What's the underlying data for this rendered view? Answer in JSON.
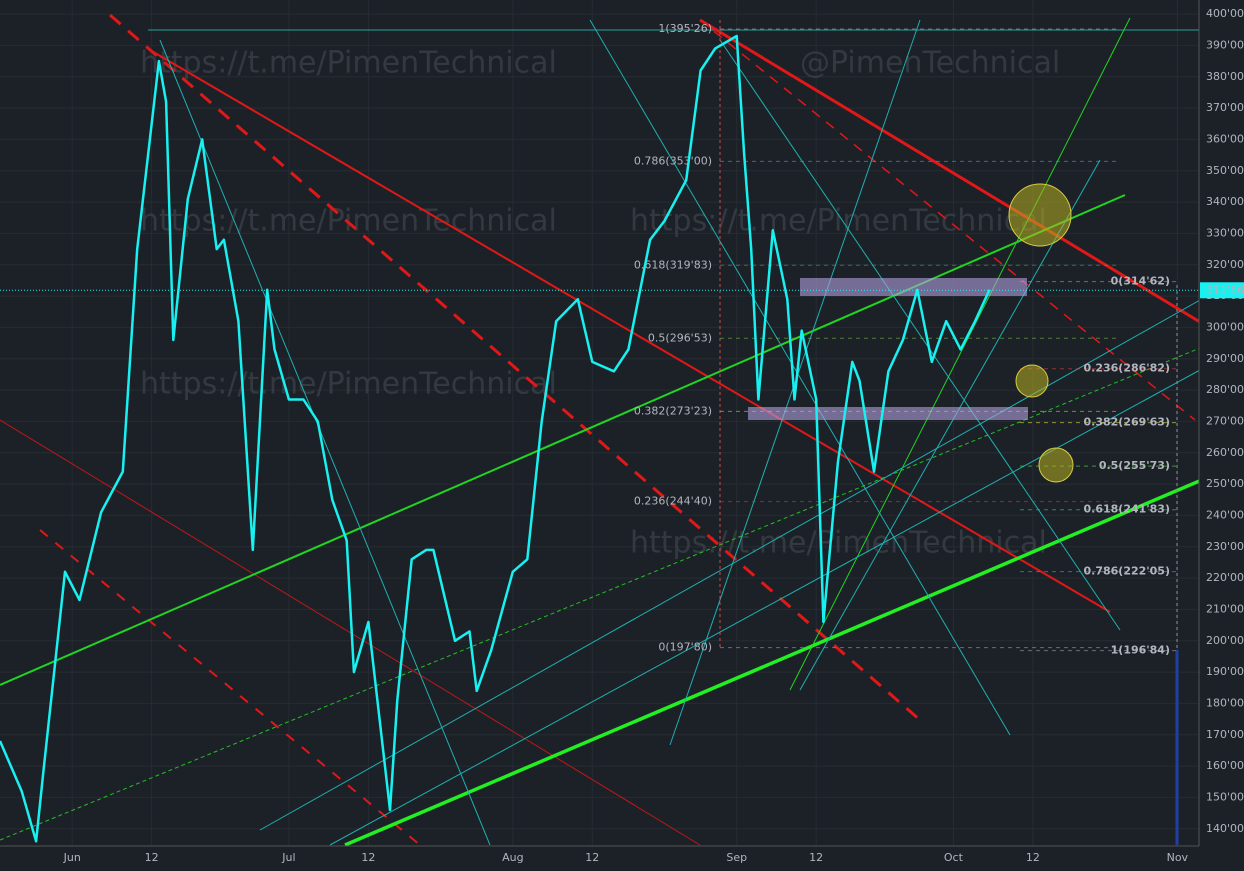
{
  "chart_data": {
    "type": "line",
    "annotations": [
      "https://t.me/PimenTechnical",
      "@PimenTechnical",
      "https://t.me/PimenTechnical",
      "https://t.me/PimenTechnical",
      "https://t.me/PimenTechnical",
      "https://t.me/PimenTechnical"
    ],
    "x": [
      "05-22",
      "05-25",
      "05-27",
      "05-28",
      "05-31",
      "06-02",
      "06-05",
      "06-08",
      "06-10",
      "06-13",
      "06-14",
      "06-15",
      "06-17",
      "06-19",
      "06-21",
      "06-22",
      "06-24",
      "06-26",
      "06-28",
      "06-29",
      "07-01",
      "07-03",
      "07-05",
      "07-07",
      "07-09",
      "07-10",
      "07-12",
      "07-15",
      "07-16",
      "07-18",
      "07-20",
      "07-21",
      "07-24",
      "07-26",
      "07-27",
      "07-29",
      "08-01",
      "08-03",
      "08-05",
      "08-07",
      "08-10",
      "08-12",
      "08-15",
      "08-17",
      "08-20",
      "08-22",
      "08-25",
      "08-27",
      "08-29",
      "09-01",
      "09-02",
      "09-03",
      "09-04",
      "09-06",
      "09-08",
      "09-09",
      "09-10",
      "09-12",
      "09-13",
      "09-15",
      "09-17",
      "09-18",
      "09-20",
      "09-22",
      "09-24",
      "09-26",
      "09-28",
      "09-30",
      "10-02",
      "10-04",
      "10-06"
    ],
    "series": [
      {
        "color": "#19f0f0",
        "values": [
          168,
          152,
          136,
          158,
          222,
          213,
          241,
          254,
          325,
          385,
          372,
          296,
          341,
          360,
          325,
          328,
          302,
          229,
          312,
          293,
          277,
          277,
          270,
          245,
          232,
          190,
          206,
          146,
          181,
          226,
          229,
          229,
          200,
          203,
          184,
          197,
          222,
          226,
          270,
          302,
          309,
          289,
          286,
          293,
          328,
          334,
          347,
          382,
          389,
          393,
          356,
          325,
          277,
          331,
          309,
          277,
          299,
          277,
          206,
          257,
          289,
          283,
          254,
          286,
          296,
          312,
          289,
          302,
          293,
          302,
          312
        ]
      }
    ],
    "xlim": [
      "05-22",
      "11-04"
    ],
    "xticks": [
      {
        "value": "06-01",
        "label": "Jun"
      },
      {
        "value": "06-12",
        "label": "12"
      },
      {
        "value": "07-01",
        "label": "Jul"
      },
      {
        "value": "07-12",
        "label": "12"
      },
      {
        "value": "08-01",
        "label": "Aug"
      },
      {
        "value": "08-12",
        "label": "12"
      },
      {
        "value": "09-01",
        "label": "Sep"
      },
      {
        "value": "09-12",
        "label": "12"
      },
      {
        "value": "10-01",
        "label": "Oct"
      },
      {
        "value": "10-12",
        "label": "12"
      },
      {
        "value": "11-01",
        "label": "Nov"
      }
    ],
    "ylim": [
      134.5,
      404.5
    ],
    "yticks": [
      {
        "value": 140,
        "label": "140'00"
      },
      {
        "value": 150,
        "label": "150'00"
      },
      {
        "value": 160,
        "label": "160'00"
      },
      {
        "value": 170,
        "label": "170'00"
      },
      {
        "value": 180,
        "label": "180'00"
      },
      {
        "value": 190,
        "label": "190'00"
      },
      {
        "value": 200,
        "label": "200'00"
      },
      {
        "value": 210,
        "label": "210'00"
      },
      {
        "value": 220,
        "label": "220'00"
      },
      {
        "value": 230,
        "label": "230'00"
      },
      {
        "value": 240,
        "label": "240'00"
      },
      {
        "value": 250,
        "label": "250'00"
      },
      {
        "value": 260,
        "label": "260'00"
      },
      {
        "value": 270,
        "label": "270'00"
      },
      {
        "value": 280,
        "label": "280'00"
      },
      {
        "value": 290,
        "label": "290'00"
      },
      {
        "value": 300,
        "label": "300'00"
      },
      {
        "value": 310,
        "label": "310'00"
      },
      {
        "value": 320,
        "label": "320'00"
      },
      {
        "value": 330,
        "label": "330'00"
      },
      {
        "value": 340,
        "label": "340'00"
      },
      {
        "value": 350,
        "label": "350'00"
      },
      {
        "value": 360,
        "label": "360'00"
      },
      {
        "value": 370,
        "label": "370'00"
      },
      {
        "value": 380,
        "label": "380'00"
      },
      {
        "value": 390,
        "label": "390'00"
      },
      {
        "value": 400,
        "label": "400'00"
      }
    ],
    "last_price": {
      "value": 311.86,
      "label": "311'86"
    },
    "fib_left": [
      {
        "value": 395.26,
        "label": "1(395'26)",
        "color": "#9aa0a6"
      },
      {
        "value": 353.0,
        "label": "0.786(353'00)",
        "color": "#4f9ad8"
      },
      {
        "value": 319.83,
        "label": "0.618(319'83)",
        "color": "#3fae5a"
      },
      {
        "value": 296.53,
        "label": "0.5(296'53)",
        "color": "#6fbf3a"
      },
      {
        "value": 273.23,
        "label": "0.382(273'23)",
        "color": "#c8c83c"
      },
      {
        "value": 244.4,
        "label": "0.236(244'40)",
        "color": "#d03838"
      },
      {
        "value": 197.8,
        "label": "0(197'80)",
        "color": "#9aa0a6"
      }
    ],
    "fib_right": [
      {
        "value": 314.62,
        "label": "0(314'62)",
        "color": "#9aa0a6"
      },
      {
        "value": 286.82,
        "label": "0.236(286'82)",
        "color": "#e03c3c"
      },
      {
        "value": 269.63,
        "label": "0.382(269'63)",
        "color": "#e0e040"
      },
      {
        "value": 255.73,
        "label": "0.5(255'73)",
        "color": "#5ce04a"
      },
      {
        "value": 241.83,
        "label": "0.618(241'83)",
        "color": "#3ec870"
      },
      {
        "value": 222.05,
        "label": "0.786(222'05)",
        "color": "#4f9ad8"
      },
      {
        "value": 196.84,
        "label": "1(196'84)",
        "color": "#9aa0a6"
      }
    ]
  }
}
